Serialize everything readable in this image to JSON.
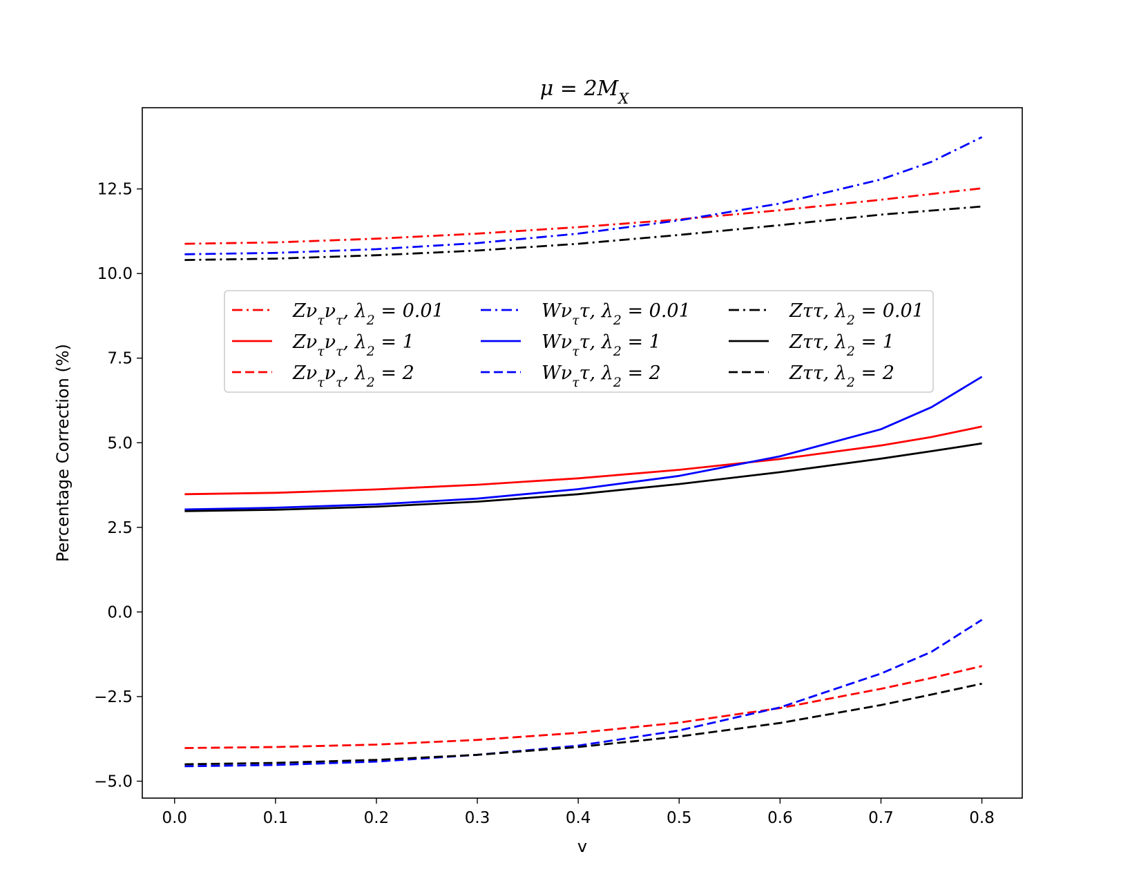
{
  "chart_data": {
    "type": "line",
    "title": "μ = 2M_X",
    "xlabel": "v",
    "ylabel": "Percentage Correction (%)",
    "xlim": [
      -0.032,
      0.84
    ],
    "ylim": [
      -5.5,
      14.9
    ],
    "xticks": [
      0.0,
      0.1,
      0.2,
      0.3,
      0.4,
      0.5,
      0.6,
      0.7,
      0.8
    ],
    "xtick_labels": [
      "0.0",
      "0.1",
      "0.2",
      "0.3",
      "0.4",
      "0.5",
      "0.6",
      "0.7",
      "0.8"
    ],
    "yticks": [
      -5.0,
      -2.5,
      0.0,
      2.5,
      5.0,
      7.5,
      10.0,
      12.5
    ],
    "ytick_labels": [
      "−5.0",
      "−2.5",
      "0.0",
      "2.5",
      "5.0",
      "7.5",
      "10.0",
      "12.5"
    ],
    "legend_position": "center-upper",
    "x": [
      0.01,
      0.1,
      0.2,
      0.3,
      0.4,
      0.5,
      0.6,
      0.7,
      0.75,
      0.8
    ],
    "series": [
      {
        "name": "Zν_τν_τ, λ_2 = 0.01",
        "color": "#ff0000",
        "style": "dashdot",
        "values": [
          10.88,
          10.92,
          11.03,
          11.18,
          11.37,
          11.6,
          11.87,
          12.18,
          12.35,
          12.52
        ]
      },
      {
        "name": "Zν_τν_τ, λ_2 = 1",
        "color": "#ff0000",
        "style": "solid",
        "values": [
          3.48,
          3.52,
          3.62,
          3.76,
          3.95,
          4.2,
          4.52,
          4.92,
          5.17,
          5.48
        ]
      },
      {
        "name": "Zν_τν_τ, λ_2 = 2",
        "color": "#ff0000",
        "style": "dashed",
        "values": [
          -4.02,
          -3.99,
          -3.92,
          -3.78,
          -3.57,
          -3.27,
          -2.84,
          -2.27,
          -1.95,
          -1.6
        ]
      },
      {
        "name": "Wν_ττ, λ_2 = 0.01",
        "color": "#0000ff",
        "style": "dashdot",
        "values": [
          10.57,
          10.61,
          10.72,
          10.9,
          11.18,
          11.57,
          12.07,
          12.78,
          13.3,
          14.03
        ]
      },
      {
        "name": "Wν_ττ, λ_2 = 1",
        "color": "#0000ff",
        "style": "solid",
        "values": [
          3.03,
          3.08,
          3.18,
          3.35,
          3.63,
          4.02,
          4.6,
          5.4,
          6.05,
          6.95
        ]
      },
      {
        "name": "Wν_ττ, λ_2 = 2",
        "color": "#0000ff",
        "style": "dashed",
        "values": [
          -4.56,
          -4.52,
          -4.42,
          -4.22,
          -3.95,
          -3.5,
          -2.82,
          -1.82,
          -1.18,
          -0.23
        ]
      },
      {
        "name": "Zττ, λ_2 = 0.01",
        "color": "#000000",
        "style": "dashdot",
        "values": [
          10.4,
          10.44,
          10.54,
          10.68,
          10.88,
          11.14,
          11.43,
          11.74,
          11.86,
          11.98
        ]
      },
      {
        "name": "Zττ, λ_2 = 1",
        "color": "#000000",
        "style": "solid",
        "values": [
          2.98,
          3.02,
          3.11,
          3.26,
          3.48,
          3.78,
          4.13,
          4.53,
          4.75,
          4.98
        ]
      },
      {
        "name": "Zττ, λ_2 = 2",
        "color": "#000000",
        "style": "dashed",
        "values": [
          -4.5,
          -4.46,
          -4.37,
          -4.22,
          -3.99,
          -3.68,
          -3.28,
          -2.75,
          -2.44,
          -2.12
        ]
      }
    ]
  }
}
